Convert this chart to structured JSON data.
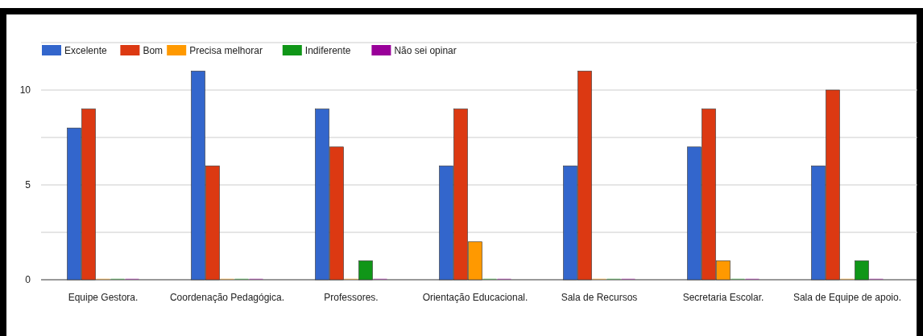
{
  "chart_data": {
    "type": "bar",
    "categories": [
      "Equipe Gestora.",
      "Coordenação Pedagógica.",
      "Professores.",
      "Orientação Educacional.",
      "Sala de Recursos",
      "Secretaria Escolar.",
      "Sala de Equipe de apoio."
    ],
    "series": [
      {
        "name": "Excelente",
        "color": "#3366cc",
        "values": [
          8,
          11,
          9,
          6,
          6,
          7,
          6
        ]
      },
      {
        "name": "Bom",
        "color": "#dc3912",
        "values": [
          9,
          6,
          7,
          9,
          11,
          9,
          10
        ]
      },
      {
        "name": "Precisa melhorar",
        "color": "#ff9900",
        "values": [
          0,
          0,
          0,
          2,
          0,
          1,
          0
        ]
      },
      {
        "name": "Indiferente",
        "color": "#109618",
        "values": [
          0,
          0,
          1,
          0,
          0,
          0,
          1
        ]
      },
      {
        "name": "Não sei opinar",
        "color": "#990099",
        "values": [
          0,
          0,
          0,
          0,
          0,
          0,
          0
        ]
      }
    ],
    "ylim": [
      0,
      12.5
    ],
    "yticks": [
      0,
      {
        "value": 2.5,
        "label": null
      },
      5,
      {
        "value": 7.5,
        "label": null
      },
      10,
      {
        "value": 12.5,
        "label": null
      }
    ],
    "grid": "y",
    "legend": "top left"
  }
}
